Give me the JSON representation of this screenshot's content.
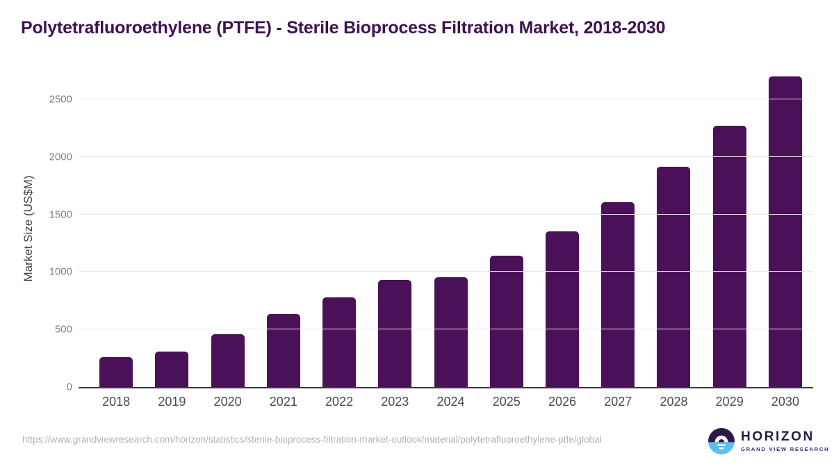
{
  "title": "Polytetrafluoroethylene (PTFE) - Sterile Bioprocess Filtration Market, 2018-2030",
  "chart_data": {
    "type": "bar",
    "categories": [
      "2018",
      "2019",
      "2020",
      "2021",
      "2022",
      "2023",
      "2024",
      "2025",
      "2026",
      "2027",
      "2028",
      "2029",
      "2030"
    ],
    "values": [
      260,
      310,
      460,
      635,
      780,
      930,
      955,
      1140,
      1350,
      1605,
      1915,
      2270,
      2700
    ],
    "title": "Polytetrafluoroethylene (PTFE) - Sterile Bioprocess Filtration Market, 2018-2030",
    "xlabel": "",
    "ylabel": "Market Size (US$M)",
    "yticks": [
      0,
      500,
      1000,
      1500,
      2000,
      2500
    ],
    "ylim": [
      0,
      2780
    ],
    "grid": true,
    "legend": "none",
    "bar_color": "#4a1158"
  },
  "colors": {
    "title_text": "#3d1152",
    "bar": "#4a1158",
    "gridline": "#e9e9e9",
    "axis_line": "#3b3b3b",
    "y_tick_text": "#808080",
    "x_tick_text": "#4a4a4a",
    "url_text": "#b3b3b3",
    "logo_purple": "#2b1a47",
    "logo_blue": "#5ac0ee"
  },
  "footer": {
    "source_url": "https://www.grandviewresearch.com/horizon/statistics/sterile-bioprocess-filtration-market-outlook/material/polytetrafluoroethylene-ptfe/global",
    "logo": {
      "name": "HORIZON",
      "tagline": "GRAND VIEW RESEARCH"
    }
  }
}
